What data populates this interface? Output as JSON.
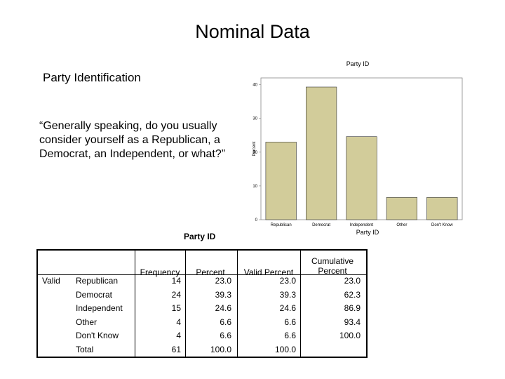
{
  "slide": {
    "title": "Nominal Data",
    "subtitle": "Party Identification",
    "question": "“Generally speaking, do you usually consider yourself as a Republican, a Democrat, an Independent, or what?”"
  },
  "chart_data": {
    "type": "bar",
    "title": "Party ID",
    "xlabel": "Party ID",
    "ylabel": "Percent",
    "categories": [
      "Republican",
      "Democrat",
      "Independent",
      "Other",
      "Don't Know"
    ],
    "values": [
      23.0,
      39.3,
      24.6,
      6.6,
      6.6
    ],
    "yticks": [
      "0",
      "10",
      "20",
      "30",
      "40"
    ],
    "ylim": [
      0,
      42
    ],
    "bar_color": "#d2cc9a",
    "grid": false,
    "legend": "none"
  },
  "table": {
    "title": "Party ID",
    "headers": [
      "Frequency",
      "Percent",
      "Valid Percent",
      "Cumulative Percent"
    ],
    "group_label": "Valid",
    "rows": [
      {
        "label": "Republican",
        "values": [
          "14",
          "23.0",
          "23.0",
          "23.0"
        ]
      },
      {
        "label": "Democrat",
        "values": [
          "24",
          "39.3",
          "39.3",
          "62.3"
        ]
      },
      {
        "label": "Independent",
        "values": [
          "15",
          "24.6",
          "24.6",
          "86.9"
        ]
      },
      {
        "label": "Other",
        "values": [
          "4",
          "6.6",
          "6.6",
          "93.4"
        ]
      },
      {
        "label": "Don't Know",
        "values": [
          "4",
          "6.6",
          "6.6",
          "100.0"
        ]
      },
      {
        "label": "Total",
        "values": [
          "61",
          "100.0",
          "100.0",
          ""
        ]
      }
    ]
  }
}
